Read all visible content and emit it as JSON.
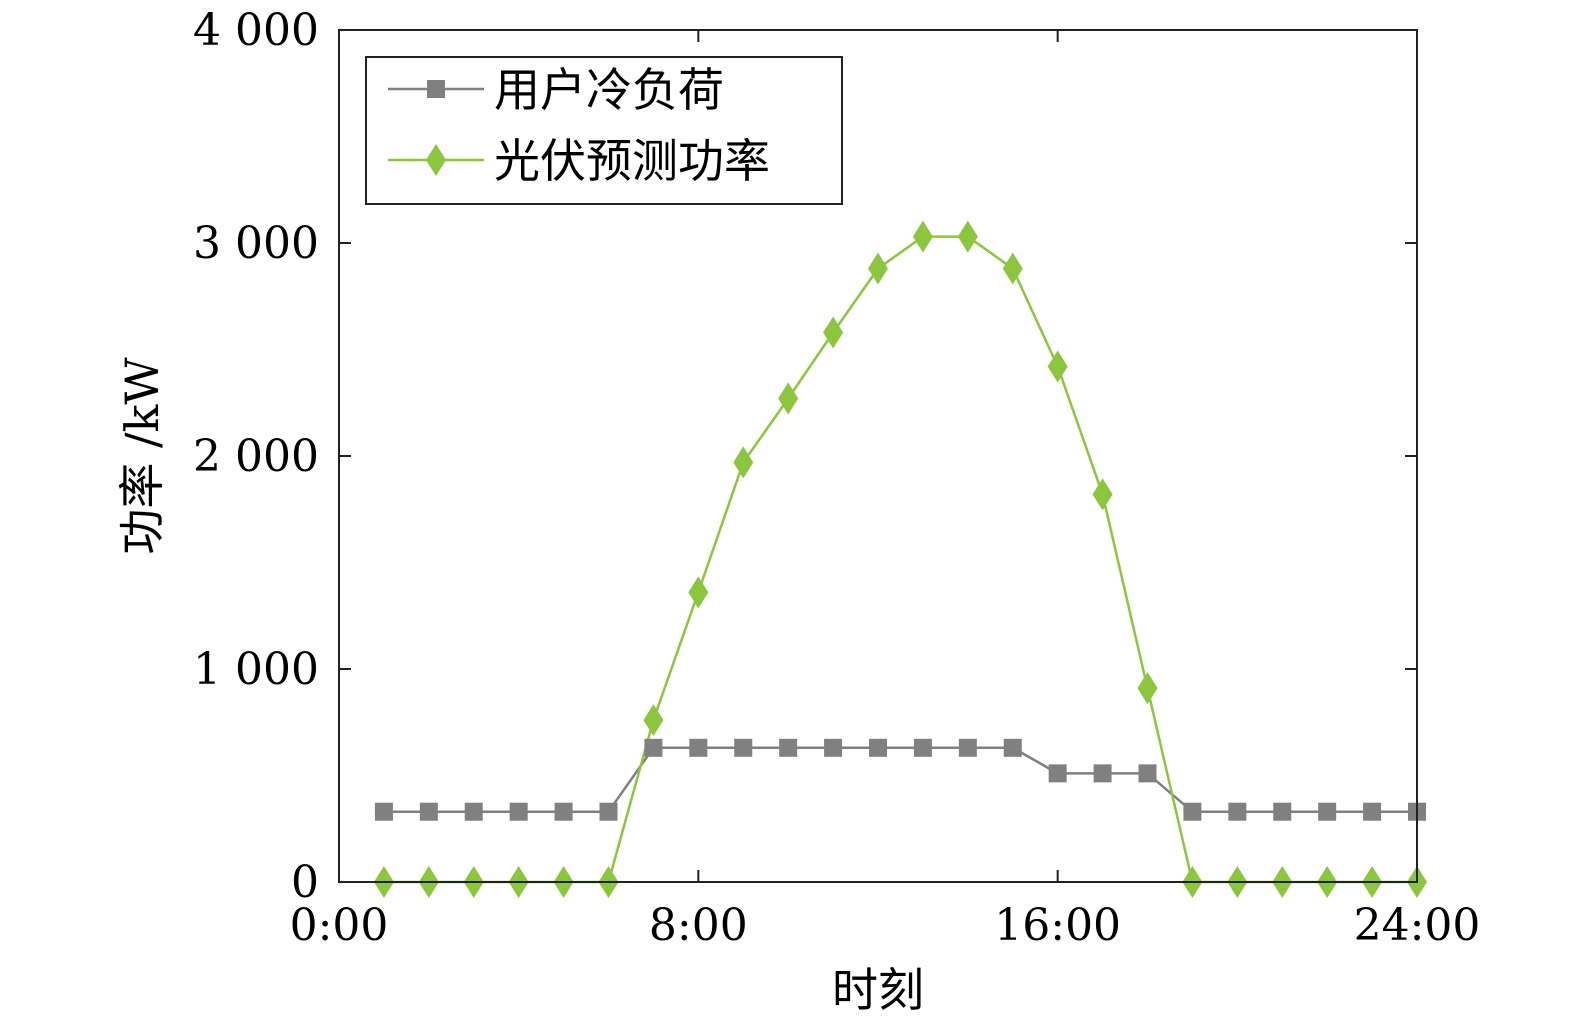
{
  "chart_data": {
    "type": "line",
    "title": "",
    "xlabel": "时刻",
    "ylabel": "功率 /kW",
    "xlim": [
      0,
      24
    ],
    "ylim": [
      0,
      4000
    ],
    "x_ticks": [
      0,
      8,
      16,
      24
    ],
    "x_tick_labels": [
      "0:00",
      "8:00",
      "16:00",
      "24:00"
    ],
    "y_ticks": [
      0,
      1000,
      2000,
      3000,
      4000
    ],
    "y_tick_labels": [
      "0",
      "1 000",
      "2 000",
      "3 000",
      "4 000"
    ],
    "grid": false,
    "legend_position": "top-left",
    "x": [
      1,
      2,
      3,
      4,
      5,
      6,
      7,
      8,
      9,
      10,
      11,
      12,
      13,
      14,
      15,
      16,
      17,
      18,
      19,
      20,
      21,
      22,
      23,
      24
    ],
    "series": [
      {
        "name": "用户冷负荷",
        "color": "#808080",
        "marker": "square",
        "values": [
          330,
          330,
          330,
          330,
          330,
          330,
          630,
          630,
          630,
          630,
          630,
          630,
          630,
          630,
          630,
          510,
          510,
          510,
          330,
          330,
          330,
          330,
          330,
          330
        ]
      },
      {
        "name": "光伏预测功率",
        "color": "#8cc63f",
        "marker": "diamond",
        "values": [
          0,
          0,
          0,
          0,
          0,
          0,
          760,
          1360,
          1970,
          2270,
          2580,
          2880,
          3030,
          3030,
          2880,
          2420,
          1820,
          910,
          0,
          0,
          0,
          0,
          0,
          0
        ]
      }
    ]
  }
}
